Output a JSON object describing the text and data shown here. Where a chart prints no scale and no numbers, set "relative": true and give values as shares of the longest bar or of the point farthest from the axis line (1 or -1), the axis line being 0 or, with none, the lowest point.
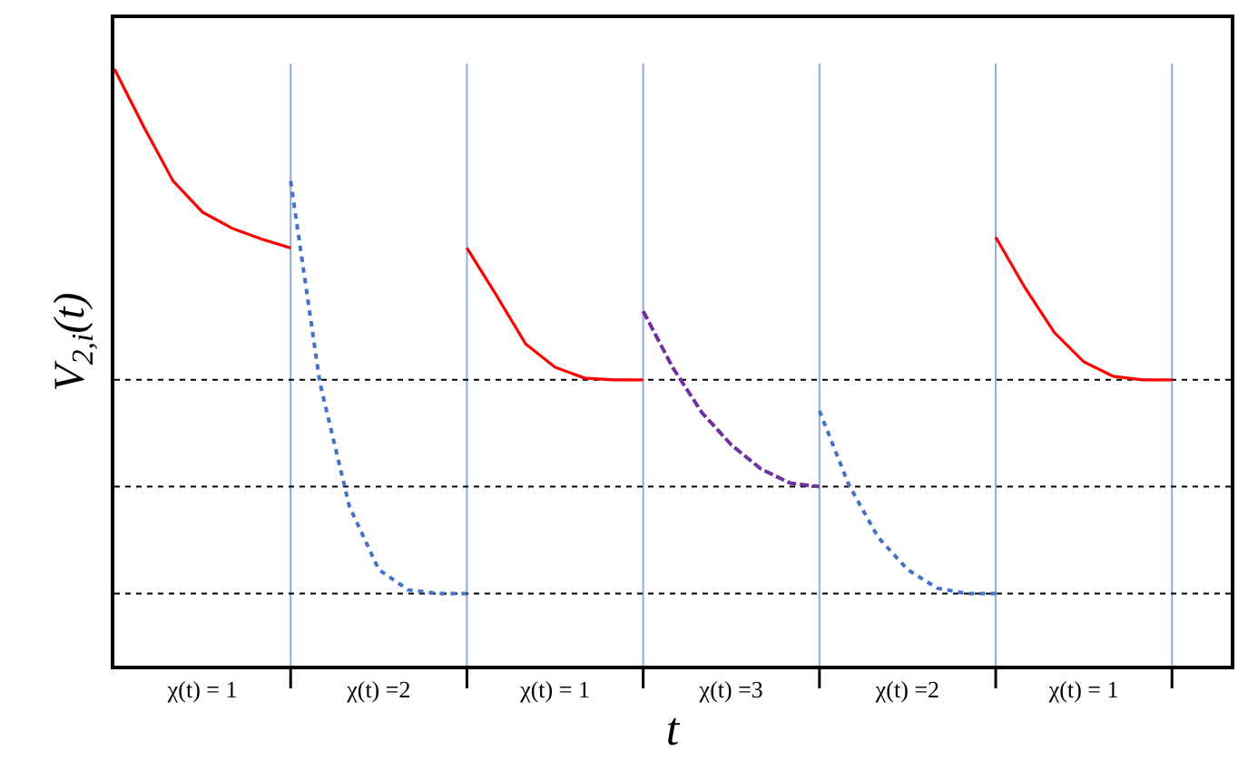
{
  "chart_data": {
    "type": "line",
    "relative": true,
    "xlabel": "t",
    "ylabel": "V$_{2,i}$(t)",
    "categories": [
      null,
      null,
      null,
      "χ(t) = 1",
      null,
      null,
      null,
      null,
      null,
      "χ(t) =2",
      null,
      null,
      null,
      null,
      null,
      "χ(t) = 1",
      null,
      null,
      null,
      null,
      null,
      "χ(t) =3",
      null,
      null,
      null,
      null,
      null,
      "χ(t) =2",
      null,
      null,
      null,
      null,
      null,
      "χ(t) = 1",
      null,
      null,
      null,
      null,
      null
    ],
    "grid": "x",
    "marker": "none",
    "series": [
      {
        "color": "#ff0000",
        "line_style": "solid",
        "values": [
          1.0,
          0.903,
          0.812,
          0.76,
          0.733,
          0.715,
          0.7,
          null,
          null,
          null,
          null,
          null,
          null,
          null,
          null,
          null,
          null,
          null,
          null,
          null,
          null,
          null,
          null,
          null,
          null,
          null,
          null,
          null,
          null,
          null,
          null,
          null,
          null,
          null,
          null,
          null,
          null,
          null,
          null
        ]
      },
      {
        "color": "#4472c4",
        "line_style": "dotted",
        "values": [
          null,
          null,
          null,
          null,
          null,
          null,
          0.812,
          0.473,
          0.267,
          0.161,
          0.127,
          0.121,
          0.121,
          null,
          null,
          null,
          null,
          null,
          null,
          null,
          null,
          null,
          null,
          null,
          null,
          null,
          null,
          null,
          null,
          null,
          null,
          null,
          null,
          null,
          null,
          null,
          null,
          null,
          null
        ]
      },
      {
        "color": "#ff0000",
        "line_style": "solid",
        "values": [
          null,
          null,
          null,
          null,
          null,
          null,
          null,
          null,
          null,
          null,
          null,
          null,
          0.7,
          0.621,
          0.539,
          0.5,
          0.482,
          0.479,
          0.479,
          null,
          null,
          null,
          null,
          null,
          null,
          null,
          null,
          null,
          null,
          null,
          null,
          null,
          null,
          null,
          null,
          null,
          null,
          null,
          null
        ]
      },
      {
        "color": "#7030a0",
        "line_style": "dashed",
        "values": [
          null,
          null,
          null,
          null,
          null,
          null,
          null,
          null,
          null,
          null,
          null,
          null,
          null,
          null,
          null,
          null,
          null,
          null,
          0.594,
          0.5,
          0.424,
          0.37,
          0.33,
          0.306,
          0.3,
          null,
          null,
          null,
          null,
          null,
          null,
          null,
          null,
          null,
          null,
          null,
          null,
          null,
          null
        ]
      },
      {
        "color": "#4472c4",
        "line_style": "dotted",
        "values": [
          null,
          null,
          null,
          null,
          null,
          null,
          null,
          null,
          null,
          null,
          null,
          null,
          null,
          null,
          null,
          null,
          null,
          null,
          null,
          null,
          null,
          null,
          null,
          null,
          0.427,
          0.303,
          0.215,
          0.161,
          0.13,
          0.121,
          0.121,
          null,
          null,
          null,
          null,
          null,
          null,
          null,
          null
        ]
      },
      {
        "color": "#ff0000",
        "line_style": "solid",
        "values": [
          null,
          null,
          null,
          null,
          null,
          null,
          null,
          null,
          null,
          null,
          null,
          null,
          null,
          null,
          null,
          null,
          null,
          null,
          null,
          null,
          null,
          null,
          null,
          null,
          null,
          null,
          null,
          null,
          null,
          null,
          0.718,
          0.633,
          0.558,
          0.509,
          0.485,
          0.479,
          0.479,
          null,
          null
        ]
      }
    ],
    "ref_lines": [
      {
        "axis": "y",
        "value": 0.479,
        "label": null,
        "color": "#000000",
        "line_style": "dotted"
      },
      {
        "axis": "y",
        "value": 0.3,
        "label": null,
        "color": "#000000",
        "line_style": "dotted"
      },
      {
        "axis": "y",
        "value": 0.121,
        "label": null,
        "color": "#000000",
        "line_style": "dotted"
      }
    ]
  }
}
